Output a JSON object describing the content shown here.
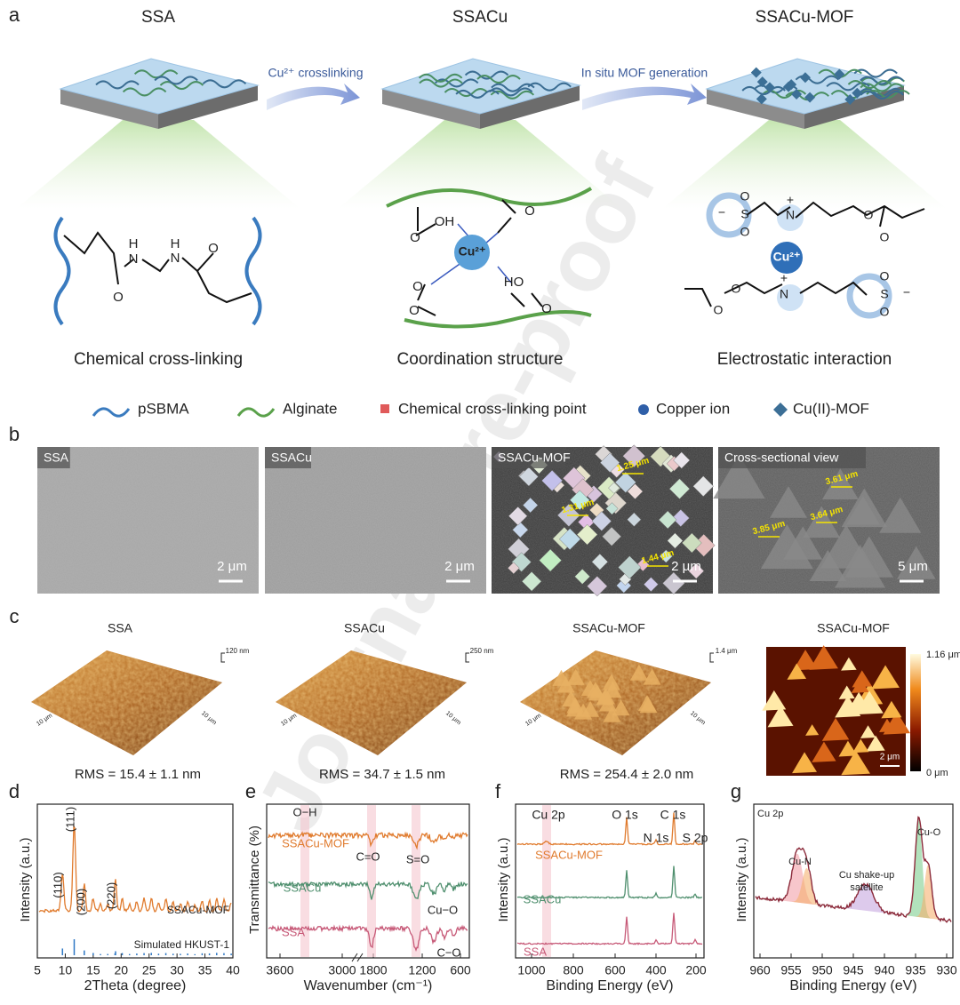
{
  "watermark": "Journal Pre-proof",
  "panel_a": {
    "label": "a",
    "stages": [
      {
        "title": "SSA",
        "caption": "Chemical cross-linking",
        "chem_labels": [
          "H",
          "N",
          "H",
          "N",
          "O",
          "O"
        ]
      },
      {
        "title": "SSACu",
        "caption": "Coordination structure",
        "chem_labels": [
          "O",
          "OH",
          "O",
          "Cu²⁺",
          "O",
          "HO",
          "O",
          "O"
        ]
      },
      {
        "title": "SSACu-MOF",
        "caption": "Electrostatic interaction",
        "chem_labels": [
          "−",
          "O",
          "S",
          "O",
          "N",
          "+",
          "O",
          "O",
          "Cu²⁺",
          "O",
          "O",
          "N",
          "+",
          "O",
          "S",
          "O",
          "−"
        ]
      }
    ],
    "arrows": [
      "Cu²⁺ crosslinking",
      "In situ MOF generation"
    ],
    "legend": [
      "pSBMA",
      "Alginate",
      "Chemical cross-linking point",
      "Copper ion",
      "Cu(II)-MOF"
    ]
  },
  "panel_b": {
    "label": "b",
    "images": [
      {
        "title": "SSA",
        "scale": "2 μm"
      },
      {
        "title": "SSACu",
        "scale": "2 μm"
      },
      {
        "title": "SSACu-MOF",
        "scale": "2 μm"
      },
      {
        "title": "Cross-sectional view",
        "scale": "5 μm"
      }
    ],
    "measurements": [
      "1.25 μm",
      "1.31 μm",
      "1.44 μm",
      "3.61 μm",
      "3.85 μm",
      "3.64 μm"
    ]
  },
  "panel_c": {
    "label": "c",
    "surfaces": [
      {
        "title": "SSA",
        "z_scale": "120 nm",
        "rms": "RMS = 15.4 ± 1.1 nm"
      },
      {
        "title": "SSACu",
        "z_scale": "250 nm",
        "rms": "RMS = 34.7 ± 1.5 nm"
      },
      {
        "title": "SSACu-MOF",
        "z_scale": "1.4 μm",
        "rms": "RMS = 254.4 ± 2.0 nm"
      }
    ],
    "side_label": "10 μm",
    "map": {
      "title": "SSACu-MOF",
      "max": "1.16 μm",
      "min": "0 μm",
      "scale": "2 μm"
    }
  },
  "panel_d": {
    "label": "d",
    "xlabel": "2Theta (degree)",
    "ylabel": "Intensity (a.u.)",
    "xticks": [
      "5",
      "10",
      "15",
      "20",
      "25",
      "30",
      "35",
      "40"
    ],
    "peaks": [
      "(110)",
      "(111)",
      "(200)",
      "(220)"
    ],
    "series": [
      "SSACu-MOF",
      "Simulated HKUST-1"
    ]
  },
  "panel_e": {
    "label": "e",
    "xlabel": "Wavenumber (cm⁻¹)",
    "ylabel": "Transmittance (%)",
    "xticks": [
      "3600",
      "3000",
      "1800",
      "1200",
      "600"
    ],
    "annotations": [
      "O−H",
      "C=O",
      "S=O",
      "Cu−O",
      "C−O"
    ],
    "series": [
      "SSACu-MOF",
      "SSACu",
      "SSA"
    ]
  },
  "panel_f": {
    "label": "f",
    "xlabel": "Binding Energy (eV)",
    "ylabel": "Intensity (a.u.)",
    "xticks": [
      "1000",
      "800",
      "600",
      "400",
      "200"
    ],
    "peaks": [
      "Cu 2p",
      "O 1s",
      "C 1s",
      "N 1s",
      "S 2p"
    ],
    "series": [
      "SSACu-MOF",
      "SSACu",
      "SSA"
    ]
  },
  "panel_g": {
    "label": "g",
    "title": "Cu 2p",
    "xlabel": "Binding Energy (eV)",
    "ylabel": "Intensity (a.u.)",
    "xticks": [
      "960",
      "955",
      "950",
      "945",
      "940",
      "935",
      "930"
    ],
    "annotations": [
      "Cu-N",
      "Cu shake-up",
      "satellite",
      "Cu-O"
    ]
  }
}
